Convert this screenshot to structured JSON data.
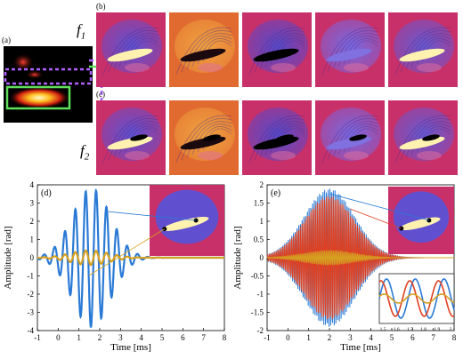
{
  "panels": {
    "a": "(a)",
    "b": "(b)",
    "c": "(c)",
    "d": "(d)",
    "e": "(e)"
  },
  "freq_labels": {
    "f1_letter": "f",
    "f1_sub": "1",
    "f2_letter": "f",
    "f2_sub": "2"
  },
  "colors": {
    "green": "#5ee05a",
    "purple": "#b060ff",
    "blue": "#2a7ad6",
    "gold": "#d6a020",
    "red": "#e04020",
    "phase_bg": "#c8306a"
  },
  "chart_data": [
    {
      "id": "d",
      "type": "line",
      "xlabel": "Time [ms]",
      "ylabel": "Amplitude [rad]",
      "xlim": [
        -1,
        8
      ],
      "ylim": [
        -4,
        4
      ],
      "xticks": [
        "-1",
        "0",
        "1",
        "2",
        "3",
        "4",
        "5",
        "6",
        "7",
        "8"
      ],
      "yticks": [
        "4",
        "3",
        "2",
        "1",
        "0",
        "-1",
        "-2",
        "-3",
        "-4"
      ],
      "series": [
        {
          "color": "blue",
          "kind": "decaying oscillation",
          "peak_amplitude": 3.8,
          "peak_time_ms": 1.6,
          "frequency_khz": 2.0
        },
        {
          "color": "gold",
          "kind": "small oscillation",
          "peak_amplitude": 0.4,
          "peak_time_ms": 1.5,
          "frequency_khz": 2.0
        }
      ]
    },
    {
      "id": "e",
      "type": "line",
      "xlabel": "Time [ms]",
      "ylabel": "Amplitude [rad]",
      "xlim": [
        -1,
        8
      ],
      "ylim": [
        -2,
        2
      ],
      "xticks": [
        "-1",
        "0",
        "1",
        "2",
        "3",
        "4",
        "5",
        "6",
        "7",
        "8"
      ],
      "yticks": [
        "2",
        "1.5",
        "1",
        "0.5",
        "0",
        "-0.5",
        "-1",
        "-1.5",
        "-2"
      ],
      "series": [
        {
          "color": "blue",
          "kind": "high-frequency burst",
          "peak_amplitude": 1.9,
          "peak_time_ms": 2.0
        },
        {
          "color": "red",
          "kind": "high-frequency burst",
          "peak_amplitude": 1.7,
          "peak_time_ms": 2.0
        },
        {
          "color": "gold",
          "kind": "small oscillation",
          "peak_amplitude": 0.2,
          "peak_time_ms": 2.0
        }
      ],
      "inset": {
        "xticks": [
          "1.5",
          "1.6",
          "1.7",
          "1.8",
          "1.9",
          "2"
        ]
      }
    }
  ]
}
